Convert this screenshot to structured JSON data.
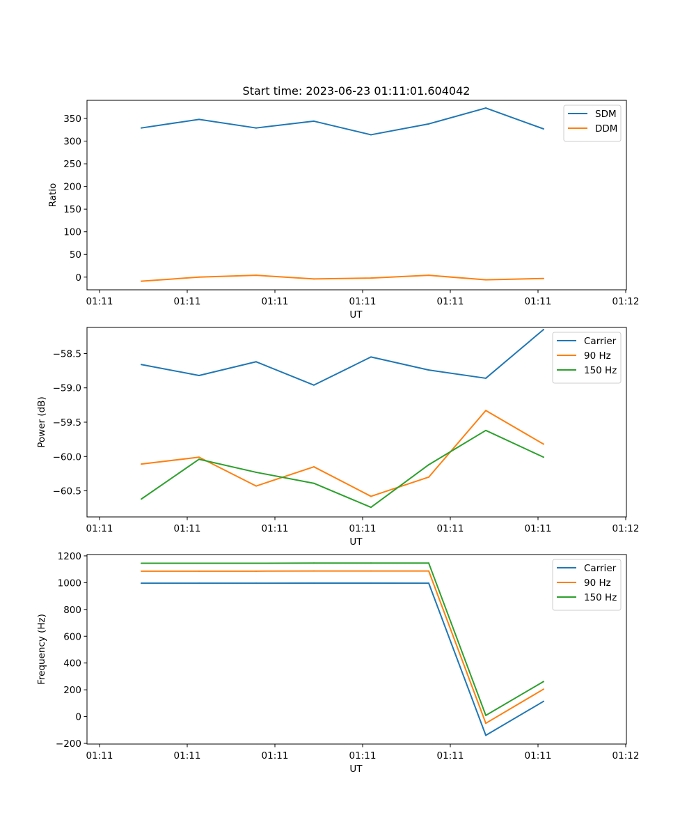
{
  "figure": {
    "title": "Start time: 2023-06-23 01:11:01.604042"
  },
  "chart_data": [
    {
      "type": "line",
      "title": "Start time: 2023-06-23 01:11:01.604042",
      "xlabel": "UT",
      "ylabel": "Ratio",
      "x": [
        1,
        2,
        3,
        4,
        5,
        6,
        7,
        8
      ],
      "x_tick_labels": [
        "01:11",
        "01:11",
        "01:11",
        "01:11",
        "01:11",
        "01:11",
        "01:11"
      ],
      "x_tick_last": "01:12",
      "y_ticks": [
        0,
        50,
        100,
        150,
        200,
        250,
        300,
        350
      ],
      "ylim": [
        -28,
        390
      ],
      "legend_position": "top-right",
      "grid": false,
      "series": [
        {
          "name": "SDM",
          "color": "#1f77b4",
          "values": [
            329,
            348,
            329,
            344,
            314,
            338,
            373,
            327
          ]
        },
        {
          "name": "DDM",
          "color": "#ff7f0e",
          "values": [
            -9,
            0,
            4,
            -4,
            -2,
            4,
            -6,
            -3
          ]
        }
      ]
    },
    {
      "type": "line",
      "xlabel": "UT",
      "ylabel": "Power (dB)",
      "x": [
        1,
        2,
        3,
        4,
        5,
        6,
        7,
        8
      ],
      "x_tick_labels": [
        "01:11",
        "01:11",
        "01:11",
        "01:11",
        "01:11",
        "01:11",
        "01:11"
      ],
      "x_tick_last": "01:12",
      "y_ticks": [
        -60.5,
        -60.0,
        -59.5,
        -59.0,
        -58.5
      ],
      "y_tick_labels": [
        "−60.5",
        "−60.0",
        "−59.5",
        "−59.0",
        "−58.5"
      ],
      "ylim": [
        -60.88,
        -58.12
      ],
      "legend_position": "top-right",
      "grid": false,
      "series": [
        {
          "name": "Carrier",
          "color": "#1f77b4",
          "values": [
            -58.66,
            -58.82,
            -58.62,
            -58.96,
            -58.55,
            -58.74,
            -58.86,
            -58.15
          ]
        },
        {
          "name": "90 Hz",
          "color": "#ff7f0e",
          "values": [
            -60.11,
            -60.01,
            -60.43,
            -60.15,
            -60.58,
            -60.3,
            -59.33,
            -59.82
          ]
        },
        {
          "name": "150 Hz",
          "color": "#2ca02c",
          "values": [
            -60.62,
            -60.04,
            -60.23,
            -60.39,
            -60.74,
            -60.12,
            -59.62,
            -60.01
          ]
        }
      ]
    },
    {
      "type": "line",
      "xlabel": "UT",
      "ylabel": "Frequency (Hz)",
      "x": [
        1,
        2,
        3,
        4,
        5,
        6,
        7,
        8
      ],
      "x_tick_labels": [
        "01:11",
        "01:11",
        "01:11",
        "01:11",
        "01:11",
        "01:11",
        "01:11"
      ],
      "x_tick_last": "01:12",
      "y_ticks": [
        -200,
        0,
        200,
        400,
        600,
        800,
        1000,
        1200
      ],
      "y_tick_labels": [
        "−200",
        "0",
        "200",
        "400",
        "600",
        "800",
        "1000",
        "1200"
      ],
      "ylim": [
        -205,
        1210
      ],
      "legend_position": "top-right",
      "grid": false,
      "series": [
        {
          "name": "Carrier",
          "color": "#1f77b4",
          "values": [
            996,
            996,
            996,
            997,
            997,
            996,
            -140,
            114
          ]
        },
        {
          "name": "90 Hz",
          "color": "#ff7f0e",
          "values": [
            1086,
            1086,
            1086,
            1087,
            1087,
            1087,
            -50,
            205
          ]
        },
        {
          "name": "150 Hz",
          "color": "#2ca02c",
          "values": [
            1145,
            1145,
            1145,
            1146,
            1146,
            1146,
            9,
            262
          ]
        }
      ]
    }
  ]
}
